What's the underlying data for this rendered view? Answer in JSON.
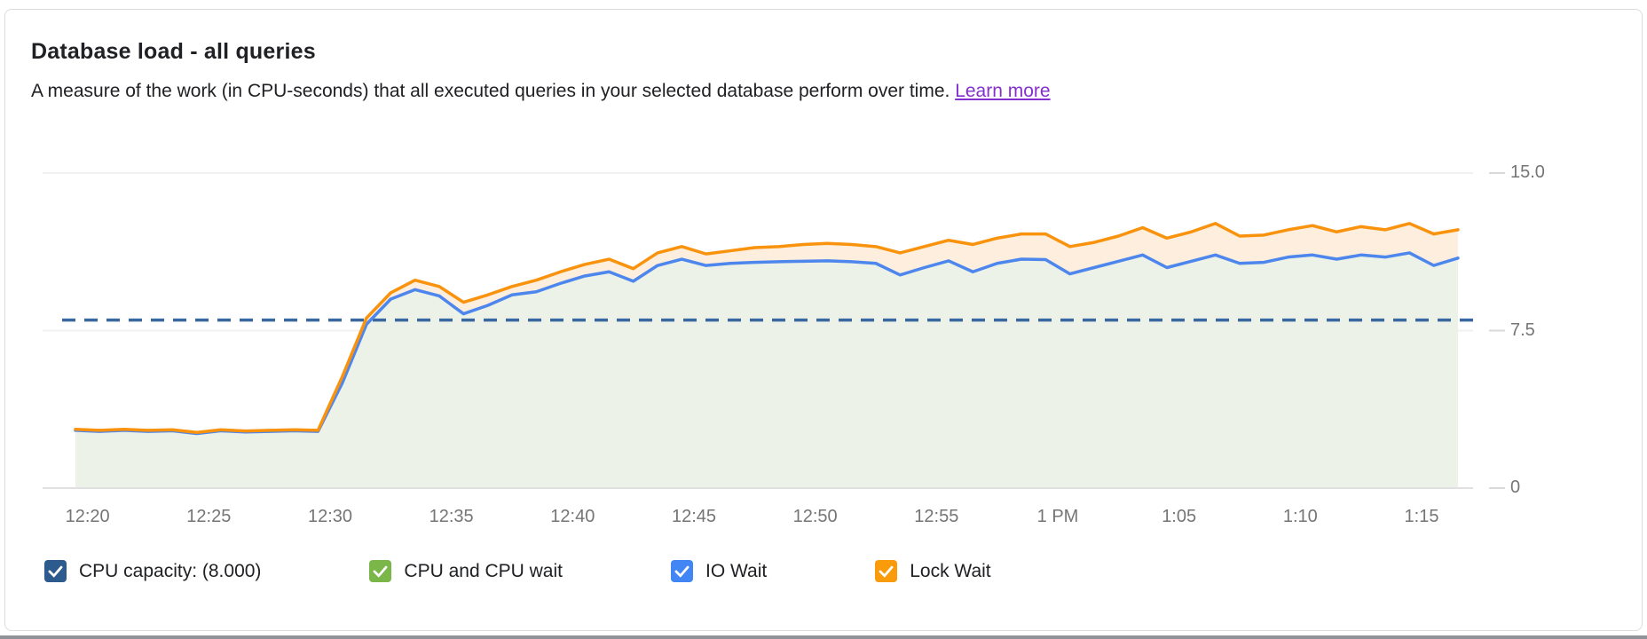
{
  "card": {
    "title": "Database load - all queries",
    "subtitle": "A measure of the work (in CPU-seconds) that all executed queries in your selected database perform over time.",
    "learn_more_label": "Learn more"
  },
  "colors": {
    "link": "#8430ce",
    "title_text": "#202124",
    "axis_text": "#757575",
    "card_border": "#dadce0",
    "capacity_line": "#38689f",
    "io_wait_line": "#4d86ec",
    "lock_wait_line": "#f9930d",
    "cpu_area_fill": "#edf2e8",
    "lock_area_fill": "#fdeedd"
  },
  "legend": {
    "items": [
      {
        "label": "CPU capacity: (8.000)",
        "color": "#2d5b8d",
        "checked": true
      },
      {
        "label": "CPU and CPU wait",
        "color": "#7ab648",
        "checked": true
      },
      {
        "label": "IO Wait",
        "color": "#4285f4",
        "checked": true
      },
      {
        "label": "Lock Wait",
        "color": "#f99b0b",
        "checked": true
      }
    ]
  },
  "chart_data": {
    "type": "area",
    "stacked": true,
    "title": "Database load - all queries",
    "xlabel": "",
    "ylabel": "",
    "ylim": [
      0,
      15
    ],
    "grid": true,
    "legend_position": "bottom",
    "y_ticks": [
      {
        "label": "15.0",
        "value": 15
      },
      {
        "label": "7.5",
        "value": 7.5
      },
      {
        "label": "0",
        "value": 0
      }
    ],
    "x_span_minutes": 57,
    "x_ticks": [
      {
        "label": "12:20",
        "t": 0.5
      },
      {
        "label": "12:25",
        "t": 5.5
      },
      {
        "label": "12:30",
        "t": 10.5
      },
      {
        "label": "12:35",
        "t": 15.5
      },
      {
        "label": "12:40",
        "t": 20.5
      },
      {
        "label": "12:45",
        "t": 25.5
      },
      {
        "label": "12:50",
        "t": 30.5
      },
      {
        "label": "12:55",
        "t": 35.5
      },
      {
        "label": "1 PM",
        "t": 40.5
      },
      {
        "label": "1:05",
        "t": 45.5
      },
      {
        "label": "1:10",
        "t": 50.5
      },
      {
        "label": "1:15",
        "t": 55.5
      }
    ],
    "capacity_line": {
      "label": "CPU capacity",
      "value": 8.0,
      "display": "(8.000)",
      "style": "dashed",
      "color": "#38689f"
    },
    "series": [
      {
        "name": "CPU and CPU wait + IO Wait (stack top, blue line)",
        "legend": "IO Wait",
        "line_color": "#4d86ec",
        "fill_color": "#edf2e8",
        "values": [
          2.75,
          2.7,
          2.75,
          2.7,
          2.73,
          2.6,
          2.73,
          2.67,
          2.7,
          2.73,
          2.7,
          5.0,
          7.8,
          9.0,
          9.45,
          9.15,
          8.3,
          8.7,
          9.2,
          9.35,
          9.75,
          10.1,
          10.3,
          9.85,
          10.6,
          10.9,
          10.6,
          10.7,
          10.75,
          10.78,
          10.8,
          10.82,
          10.78,
          10.7,
          10.15,
          10.5,
          10.82,
          10.3,
          10.7,
          10.9,
          10.88,
          10.2,
          10.5,
          10.8,
          11.1,
          10.5,
          10.8,
          11.1,
          10.7,
          10.75,
          11.0,
          11.1,
          10.9,
          11.1,
          11.0,
          11.2,
          10.6,
          10.95
        ]
      },
      {
        "name": "Total load incl. Lock Wait (stack top, orange line)",
        "legend": "Lock Wait",
        "line_color": "#f9930d",
        "fill_color": "#fdeedd",
        "values": [
          2.8,
          2.75,
          2.8,
          2.75,
          2.78,
          2.65,
          2.78,
          2.72,
          2.75,
          2.78,
          2.75,
          5.3,
          8.1,
          9.3,
          9.9,
          9.6,
          8.85,
          9.2,
          9.6,
          9.9,
          10.3,
          10.65,
          10.9,
          10.45,
          11.2,
          11.5,
          11.15,
          11.3,
          11.45,
          11.5,
          11.6,
          11.65,
          11.6,
          11.5,
          11.2,
          11.5,
          11.8,
          11.6,
          11.9,
          12.1,
          12.1,
          11.5,
          11.7,
          12.0,
          12.4,
          11.9,
          12.2,
          12.6,
          12.0,
          12.05,
          12.3,
          12.5,
          12.2,
          12.45,
          12.3,
          12.6,
          12.1,
          12.3
        ]
      }
    ]
  }
}
